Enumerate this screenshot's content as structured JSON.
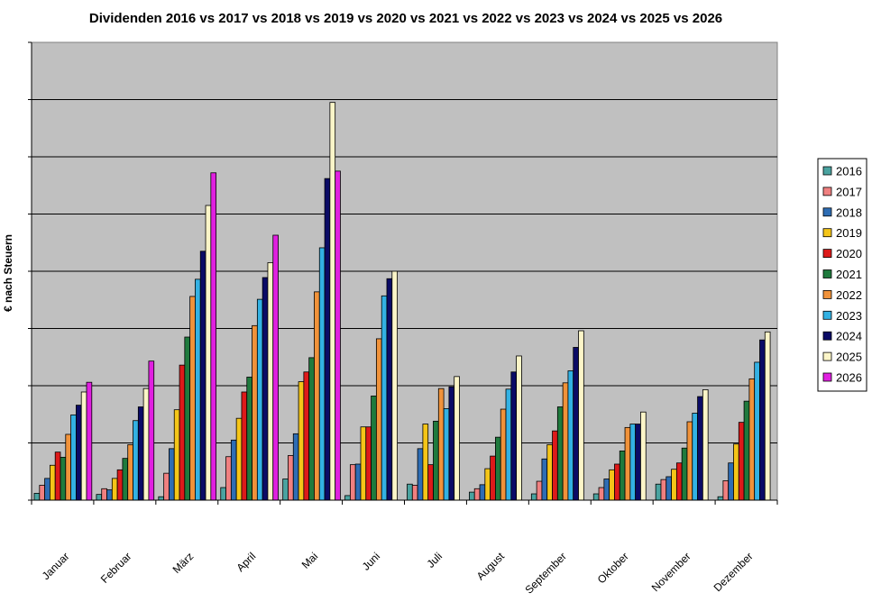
{
  "chart_data": {
    "type": "bar",
    "title": "Dividenden 2016 vs 2017 vs 2018 vs 2019 vs 2020 vs 2021 vs 2022 vs 2023 vs 2024 vs 2025 vs 2026",
    "xlabel": "",
    "ylabel": "€ nach Steuern",
    "ylim": [
      0,
      8
    ],
    "grid": true,
    "legend_position": "right",
    "categories": [
      "Januar",
      "Februar",
      "März",
      "April",
      "Mai",
      "Juni",
      "Juli",
      "August",
      "September",
      "Oktober",
      "November",
      "Dezember"
    ],
    "series": [
      {
        "name": "2016",
        "color": "#4aa3a0",
        "values": [
          0.12,
          0.1,
          0.06,
          0.22,
          0.37,
          0.08,
          0.28,
          0.14,
          0.11,
          0.11,
          0.28,
          0.06
        ]
      },
      {
        "name": "2017",
        "color": "#f08080",
        "values": [
          0.26,
          0.2,
          0.47,
          0.76,
          0.78,
          0.62,
          0.26,
          0.2,
          0.33,
          0.22,
          0.36,
          0.34
        ]
      },
      {
        "name": "2018",
        "color": "#2e6db4",
        "values": [
          0.38,
          0.18,
          0.9,
          1.05,
          1.16,
          0.63,
          0.9,
          0.27,
          0.72,
          0.37,
          0.41,
          0.65
        ]
      },
      {
        "name": "2019",
        "color": "#f5c518",
        "values": [
          0.61,
          0.38,
          1.58,
          1.43,
          2.07,
          1.28,
          1.33,
          0.55,
          0.97,
          0.53,
          0.54,
          0.98
        ]
      },
      {
        "name": "2020",
        "color": "#dd1a1a",
        "values": [
          0.84,
          0.53,
          2.36,
          1.89,
          2.24,
          1.28,
          0.62,
          0.77,
          1.21,
          0.63,
          0.65,
          1.36
        ]
      },
      {
        "name": "2021",
        "color": "#1f7a3d",
        "values": [
          0.75,
          0.73,
          2.85,
          2.15,
          2.49,
          1.82,
          1.38,
          1.1,
          1.63,
          0.86,
          0.91,
          1.73
        ]
      },
      {
        "name": "2022",
        "color": "#f0923a",
        "values": [
          1.15,
          0.97,
          3.56,
          3.05,
          3.64,
          2.82,
          1.95,
          1.59,
          2.05,
          1.27,
          1.37,
          2.12
        ]
      },
      {
        "name": "2023",
        "color": "#33b1e3",
        "values": [
          1.49,
          1.39,
          3.86,
          3.51,
          4.41,
          3.57,
          1.6,
          1.94,
          2.26,
          1.33,
          1.52,
          2.41
        ]
      },
      {
        "name": "2024",
        "color": "#0b0b66",
        "values": [
          1.66,
          1.63,
          4.35,
          3.89,
          5.62,
          3.87,
          1.98,
          2.24,
          2.67,
          1.33,
          1.81,
          2.8
        ]
      },
      {
        "name": "2025",
        "color": "#fbf5c8",
        "values": [
          1.89,
          1.95,
          5.15,
          4.15,
          6.95,
          4.0,
          2.16,
          2.52,
          2.96,
          1.54,
          1.93,
          2.94
        ]
      },
      {
        "name": "2026",
        "color": "#e020e0",
        "values": [
          2.06,
          2.43,
          5.72,
          4.63,
          5.75,
          null,
          null,
          null,
          null,
          null,
          null,
          null
        ]
      }
    ]
  }
}
